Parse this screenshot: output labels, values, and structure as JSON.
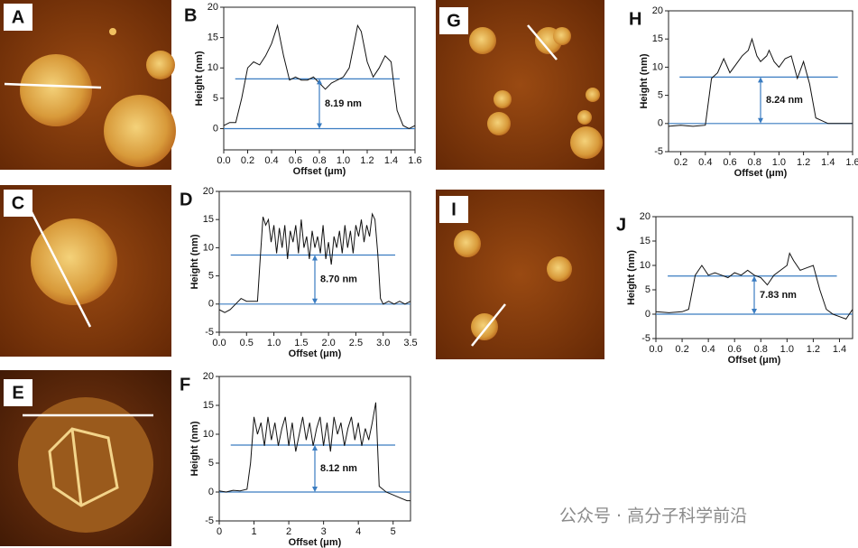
{
  "images": [
    "A",
    "C",
    "E",
    "G",
    "I"
  ],
  "watermark": "公众号 · 高分子科学前沿",
  "chart_data": [
    {
      "type": "line",
      "label": "B",
      "xlabel": "Offset (μm)",
      "ylabel": "Height (nm)",
      "color": "#111111",
      "level_color": "#3a7cc1",
      "xlim": [
        0,
        1.6
      ],
      "xticks": [
        {
          "value": 0,
          "label": "0.0"
        },
        0.2,
        0.4,
        0.6,
        0.8,
        {
          "value": 1,
          "label": "1.0"
        },
        1.2,
        1.4,
        1.6
      ],
      "ylim": [
        -3.5,
        20
      ],
      "yticks": [
        0,
        5,
        10,
        15,
        20
      ],
      "x": [
        0,
        0.05,
        0.1,
        0.15,
        0.2,
        0.25,
        0.3,
        0.35,
        0.4,
        0.45,
        0.5,
        0.55,
        0.6,
        0.65,
        0.7,
        0.75,
        0.8,
        0.85,
        0.9,
        0.95,
        1.0,
        1.05,
        1.1,
        1.12,
        1.15,
        1.2,
        1.25,
        1.3,
        1.35,
        1.4,
        1.45,
        1.5,
        1.55,
        1.6
      ],
      "values": [
        0.5,
        1,
        1,
        5,
        10,
        11,
        10.5,
        12,
        14,
        17,
        12,
        8,
        8.5,
        8,
        8,
        8.5,
        7.5,
        6.5,
        7.5,
        8,
        8.5,
        10,
        15,
        17,
        16,
        11,
        8.5,
        10,
        12,
        11,
        3,
        0.5,
        0,
        0.5
      ],
      "level": 8.19,
      "level_label": "8.19 nm"
    },
    {
      "type": "line",
      "label": "D",
      "xlabel": "Offset (μm)",
      "ylabel": "Height (nm)",
      "color": "#111111",
      "level_color": "#3a7cc1",
      "xlim": [
        0,
        3.5
      ],
      "xticks": [
        {
          "value": 0,
          "label": "0.0"
        },
        0.5,
        {
          "value": 1,
          "label": "1.0"
        },
        1.5,
        {
          "value": 2,
          "label": "2.0"
        },
        2.5,
        {
          "value": 3,
          "label": "3.0"
        },
        3.5
      ],
      "ylim": [
        -5,
        20
      ],
      "yticks": [
        -5,
        0,
        5,
        10,
        15,
        20
      ],
      "x": [
        0,
        0.1,
        0.2,
        0.3,
        0.4,
        0.5,
        0.6,
        0.7,
        0.75,
        0.8,
        0.85,
        0.9,
        0.95,
        1.0,
        1.05,
        1.1,
        1.15,
        1.2,
        1.25,
        1.3,
        1.35,
        1.4,
        1.45,
        1.5,
        1.55,
        1.6,
        1.65,
        1.7,
        1.75,
        1.8,
        1.85,
        1.9,
        1.95,
        2.0,
        2.05,
        2.1,
        2.15,
        2.2,
        2.25,
        2.3,
        2.35,
        2.4,
        2.45,
        2.5,
        2.55,
        2.6,
        2.65,
        2.7,
        2.75,
        2.8,
        2.85,
        2.9,
        2.95,
        3.0,
        3.1,
        3.2,
        3.3,
        3.4,
        3.5
      ],
      "values": [
        -1,
        -1.5,
        -1,
        0,
        1,
        0.5,
        0.5,
        0.5,
        8,
        15.5,
        14,
        15,
        11,
        14,
        9,
        13.5,
        10,
        14,
        8,
        13,
        11,
        14,
        9,
        15,
        10,
        12,
        8,
        13,
        10,
        12,
        9,
        14,
        8,
        11,
        7,
        12,
        10,
        13,
        9,
        14,
        10,
        13,
        9,
        14,
        12,
        15,
        11,
        14,
        12,
        16,
        15,
        9,
        1,
        0,
        0.5,
        0,
        0.5,
        0,
        0.5
      ],
      "level": 8.7,
      "level_label": "8.70 nm"
    },
    {
      "type": "line",
      "label": "F",
      "xlabel": "Offset (μm)",
      "ylabel": "Height (nm)",
      "color": "#111111",
      "level_color": "#3a7cc1",
      "xlim": [
        0,
        5.5
      ],
      "xticks": [
        0,
        1,
        2,
        3,
        4,
        5
      ],
      "ylim": [
        -5,
        20
      ],
      "yticks": [
        -5,
        0,
        5,
        10,
        15,
        20
      ],
      "x": [
        0,
        0.2,
        0.4,
        0.6,
        0.8,
        0.9,
        1.0,
        1.1,
        1.2,
        1.3,
        1.4,
        1.5,
        1.6,
        1.7,
        1.8,
        1.9,
        2.0,
        2.1,
        2.2,
        2.3,
        2.4,
        2.5,
        2.6,
        2.7,
        2.8,
        2.9,
        3.0,
        3.1,
        3.2,
        3.3,
        3.4,
        3.5,
        3.6,
        3.7,
        3.8,
        3.9,
        4.0,
        4.1,
        4.2,
        4.3,
        4.4,
        4.5,
        4.6,
        4.8,
        5.0,
        5.2,
        5.4,
        5.5
      ],
      "values": [
        0.2,
        0,
        0.3,
        0.2,
        0.5,
        5,
        13,
        10,
        12,
        8,
        13,
        9,
        12,
        8,
        11,
        13,
        8,
        12,
        7,
        10,
        13,
        9,
        12,
        8,
        11,
        13,
        8,
        12,
        7,
        13,
        10,
        12,
        8,
        11,
        13,
        9,
        12,
        8,
        11,
        9,
        12,
        15.5,
        1,
        0,
        -0.5,
        -1,
        -1.5,
        -1.5
      ],
      "level": 8.12,
      "level_label": "8.12 nm"
    },
    {
      "type": "line",
      "label": "H",
      "xlabel": "Offset (μm)",
      "ylabel": "Height (nm)",
      "color": "#111111",
      "level_color": "#3a7cc1",
      "xlim": [
        0.1,
        1.6
      ],
      "xticks": [
        0.2,
        0.4,
        0.6,
        0.8,
        {
          "value": 1,
          "label": "1.0"
        },
        1.2,
        1.4,
        1.6
      ],
      "ylim": [
        -5,
        20
      ],
      "yticks": [
        -5,
        0,
        5,
        10,
        15,
        20
      ],
      "x": [
        0.1,
        0.2,
        0.3,
        0.4,
        0.45,
        0.5,
        0.55,
        0.6,
        0.65,
        0.7,
        0.75,
        0.78,
        0.82,
        0.85,
        0.9,
        0.92,
        0.96,
        1.0,
        1.05,
        1.1,
        1.15,
        1.2,
        1.25,
        1.3,
        1.35,
        1.4,
        1.5,
        1.6
      ],
      "values": [
        -0.5,
        -0.3,
        -0.5,
        -0.3,
        8,
        9,
        11.5,
        9,
        10.5,
        12,
        13,
        15,
        12,
        11,
        12,
        13,
        11,
        10,
        11.5,
        12,
        8,
        11,
        7,
        1,
        0.5,
        0,
        0,
        0
      ],
      "level": 8.24,
      "level_label": "8.24 nm"
    },
    {
      "type": "line",
      "label": "J",
      "xlabel": "Offset (μm)",
      "ylabel": "Height (nm)",
      "color": "#111111",
      "level_color": "#3a7cc1",
      "xlim": [
        0,
        1.5
      ],
      "xticks": [
        {
          "value": 0,
          "label": "0.0"
        },
        0.2,
        0.4,
        0.6,
        0.8,
        {
          "value": 1,
          "label": "1.0"
        },
        1.2,
        1.4
      ],
      "ylim": [
        -5,
        20
      ],
      "yticks": [
        -5,
        0,
        5,
        10,
        15,
        20
      ],
      "x": [
        0,
        0.1,
        0.2,
        0.25,
        0.3,
        0.35,
        0.4,
        0.45,
        0.5,
        0.55,
        0.6,
        0.65,
        0.7,
        0.75,
        0.8,
        0.85,
        0.9,
        0.95,
        1.0,
        1.02,
        1.05,
        1.1,
        1.15,
        1.2,
        1.25,
        1.3,
        1.35,
        1.4,
        1.45,
        1.5
      ],
      "values": [
        0.5,
        0.3,
        0.5,
        1,
        8,
        10,
        8,
        8.5,
        8,
        7.5,
        8.5,
        8,
        9,
        8,
        7.5,
        6,
        8,
        9,
        10,
        12.5,
        11,
        9,
        9.5,
        10,
        5,
        1,
        0,
        -0.5,
        -1,
        1
      ],
      "level": 7.83,
      "level_label": "7.83 nm"
    }
  ]
}
